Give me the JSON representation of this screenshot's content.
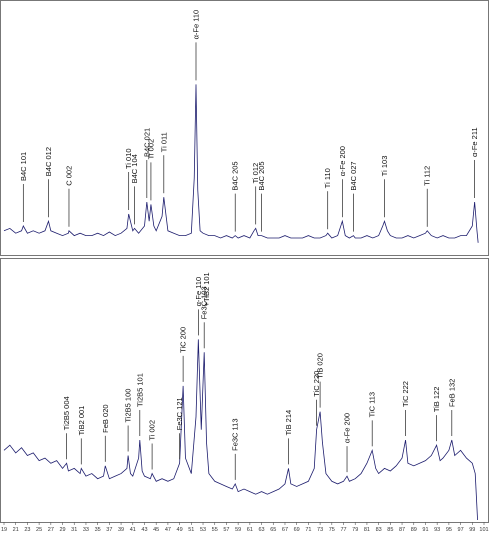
{
  "chart_data": [
    {
      "type": "line",
      "color": "#1e1e6e",
      "xlim": [
        19,
        101
      ],
      "ylim": [
        0,
        100
      ],
      "x": [
        19,
        20,
        21,
        22,
        22.3,
        23,
        24,
        25,
        26,
        26.6,
        27,
        28,
        29,
        30,
        30.1,
        31,
        32,
        33,
        34,
        35,
        36,
        37,
        38,
        39,
        40,
        40.3,
        41,
        41.3,
        42,
        43,
        43.4,
        43.8,
        44.1,
        44.6,
        45,
        46,
        46.3,
        46.8,
        47,
        48,
        49,
        50,
        51,
        51.5,
        51.8,
        52.1,
        52.5,
        53,
        54,
        55,
        56,
        57,
        58,
        58.5,
        59,
        60,
        61,
        61.7,
        62,
        62.4,
        63,
        64,
        65,
        66,
        67,
        68,
        69,
        70,
        71,
        72,
        73,
        74,
        74.3,
        75,
        76,
        76.8,
        77.3,
        78,
        78.7,
        79,
        80,
        81,
        82,
        83,
        83.7,
        84,
        84.5,
        85,
        86,
        87,
        88,
        89,
        90,
        91,
        91.3,
        92,
        93,
        94,
        95,
        96,
        97,
        98,
        99,
        99.4,
        99.8,
        100
      ],
      "values": [
        8,
        9,
        7,
        8,
        10,
        7,
        8,
        7,
        8,
        12,
        8,
        7,
        6,
        7,
        8,
        6,
        7,
        6,
        6,
        7,
        6,
        7.5,
        6,
        7,
        9,
        15,
        8,
        9,
        7,
        10,
        20,
        12,
        19,
        10,
        8,
        14,
        22,
        12,
        8,
        7,
        6,
        6,
        7,
        30,
        69,
        25,
        8,
        7,
        6,
        6,
        5,
        6,
        5,
        6,
        5,
        6,
        5,
        8,
        9,
        6,
        6,
        5,
        5,
        5,
        6,
        5,
        5,
        5,
        6,
        5,
        5,
        6,
        7,
        5,
        6,
        12,
        6,
        5,
        6,
        5,
        5,
        6,
        5,
        6,
        10,
        12,
        8,
        6,
        5,
        5,
        6,
        5,
        6,
        7,
        8,
        6,
        5,
        6,
        5,
        5,
        6,
        6,
        10,
        20,
        8,
        3
      ],
      "annotations": [
        {
          "label": "B4C 101",
          "x": 22.3
        },
        {
          "label": "B4C 012",
          "x": 26.6
        },
        {
          "label": "C 002",
          "x": 30.1
        },
        {
          "label": "Ti 010",
          "x": 40.3
        },
        {
          "label": "B4C 104",
          "x": 41.3
        },
        {
          "label": "B4C 021",
          "x": 43.4
        },
        {
          "label": "Ti 002",
          "x": 44.1
        },
        {
          "label": "Ti 011",
          "x": 46.3
        },
        {
          "label": "α-Fe 110",
          "x": 51.8
        },
        {
          "label": "B4C 205",
          "x": 58.5
        },
        {
          "label": "Ti 012",
          "x": 62
        },
        {
          "label": "B4C 205",
          "x": 63
        },
        {
          "label": "Ti 110",
          "x": 74.3
        },
        {
          "label": "α-Fe 200",
          "x": 76.8
        },
        {
          "label": "B4C 027",
          "x": 78.7
        },
        {
          "label": "Ti 103",
          "x": 84
        },
        {
          "label": "Ti 112",
          "x": 91.3
        },
        {
          "label": "α-Fe 211",
          "x": 99.4
        }
      ]
    },
    {
      "type": "line",
      "color": "#1e1e6e",
      "xlim": [
        19,
        101
      ],
      "ylim": [
        0,
        100
      ],
      "xticks": [
        19,
        21,
        23,
        25,
        27,
        29,
        31,
        33,
        35,
        37,
        39,
        41,
        43,
        45,
        47,
        49,
        51,
        53,
        55,
        57,
        59,
        61,
        63,
        65,
        67,
        69,
        71,
        73,
        75,
        77,
        79,
        81,
        83,
        85,
        87,
        89,
        91,
        93,
        95,
        97,
        99,
        101
      ],
      "x": [
        19,
        20,
        21,
        22,
        23,
        24,
        25,
        26,
        27,
        28,
        29,
        29.7,
        30,
        31,
        32,
        32.2,
        33,
        34,
        35,
        36,
        36.3,
        37,
        38,
        39,
        40,
        40.2,
        40.6,
        41,
        42,
        42.2,
        42.6,
        43,
        44,
        44.3,
        45,
        46,
        47,
        48,
        49,
        49.6,
        50,
        51,
        51.8,
        52.2,
        52.7,
        53.2,
        53.6,
        54,
        55,
        56,
        57,
        58,
        58.5,
        59,
        60,
        61,
        62,
        63,
        64,
        65,
        66,
        67,
        67.6,
        68,
        69,
        70,
        71,
        72,
        72.4,
        73,
        73.4,
        74,
        75,
        76,
        77,
        77.6,
        78,
        79,
        80,
        81,
        81.9,
        82.5,
        83,
        84,
        85,
        86,
        87,
        87.6,
        88,
        89,
        90,
        91,
        92,
        92.9,
        93.5,
        94,
        95,
        95.5,
        96,
        97,
        98,
        99,
        99.5,
        99.9
      ],
      "values": [
        27,
        29,
        26,
        28,
        25,
        26,
        23,
        24,
        22,
        23,
        20,
        22,
        19,
        20,
        18,
        20,
        17,
        18,
        16,
        17,
        21,
        16,
        17,
        18,
        20,
        25,
        18,
        17,
        24,
        31,
        19,
        17,
        16,
        18,
        15,
        16,
        15,
        16,
        22,
        52,
        24,
        18,
        40,
        70,
        35,
        65,
        30,
        18,
        15,
        14,
        13,
        12,
        14,
        11,
        12,
        11,
        10,
        11,
        10,
        11,
        12,
        14,
        20,
        14,
        13,
        14,
        15,
        20,
        35,
        42,
        30,
        18,
        15,
        14,
        15,
        17,
        15,
        16,
        18,
        22,
        27,
        20,
        18,
        20,
        19,
        21,
        24,
        31,
        22,
        21,
        22,
        23,
        25,
        29,
        23,
        24,
        27,
        31,
        25,
        27,
        24,
        22,
        18,
        0
      ],
      "annotations": [
        {
          "label": "Ti2B5 004",
          "x": 29.7
        },
        {
          "label": "TiB2 001",
          "x": 32.2
        },
        {
          "label": "FeB 020",
          "x": 36.3
        },
        {
          "label": "Ti2B5 100",
          "x": 40.2
        },
        {
          "label": "Ti2B5 101",
          "x": 42.2
        },
        {
          "label": "Ti 002",
          "x": 44.3
        },
        {
          "label": "Fe3C 121",
          "x": 49
        },
        {
          "label": "TiC 200",
          "x": 49.6
        },
        {
          "label": [
            "α-Fe 110",
            "+TiB2 101"
          ],
          "x": 52.2
        },
        {
          "label": "Fe3C 103",
          "x": 53.2
        },
        {
          "label": "Fe3C 113",
          "x": 58.5
        },
        {
          "label": "TiB 214",
          "x": 67.6
        },
        {
          "label": "TiC 220",
          "x": 72.4
        },
        {
          "label": "TiB 020",
          "x": 73
        },
        {
          "label": "α-Fe 200",
          "x": 77.6
        },
        {
          "label": "TiC 113",
          "x": 81.9
        },
        {
          "label": "TiC 222",
          "x": 87.6
        },
        {
          "label": "TiB 122",
          "x": 92.9
        },
        {
          "label": "FeB 132",
          "x": 95.5
        }
      ]
    }
  ]
}
